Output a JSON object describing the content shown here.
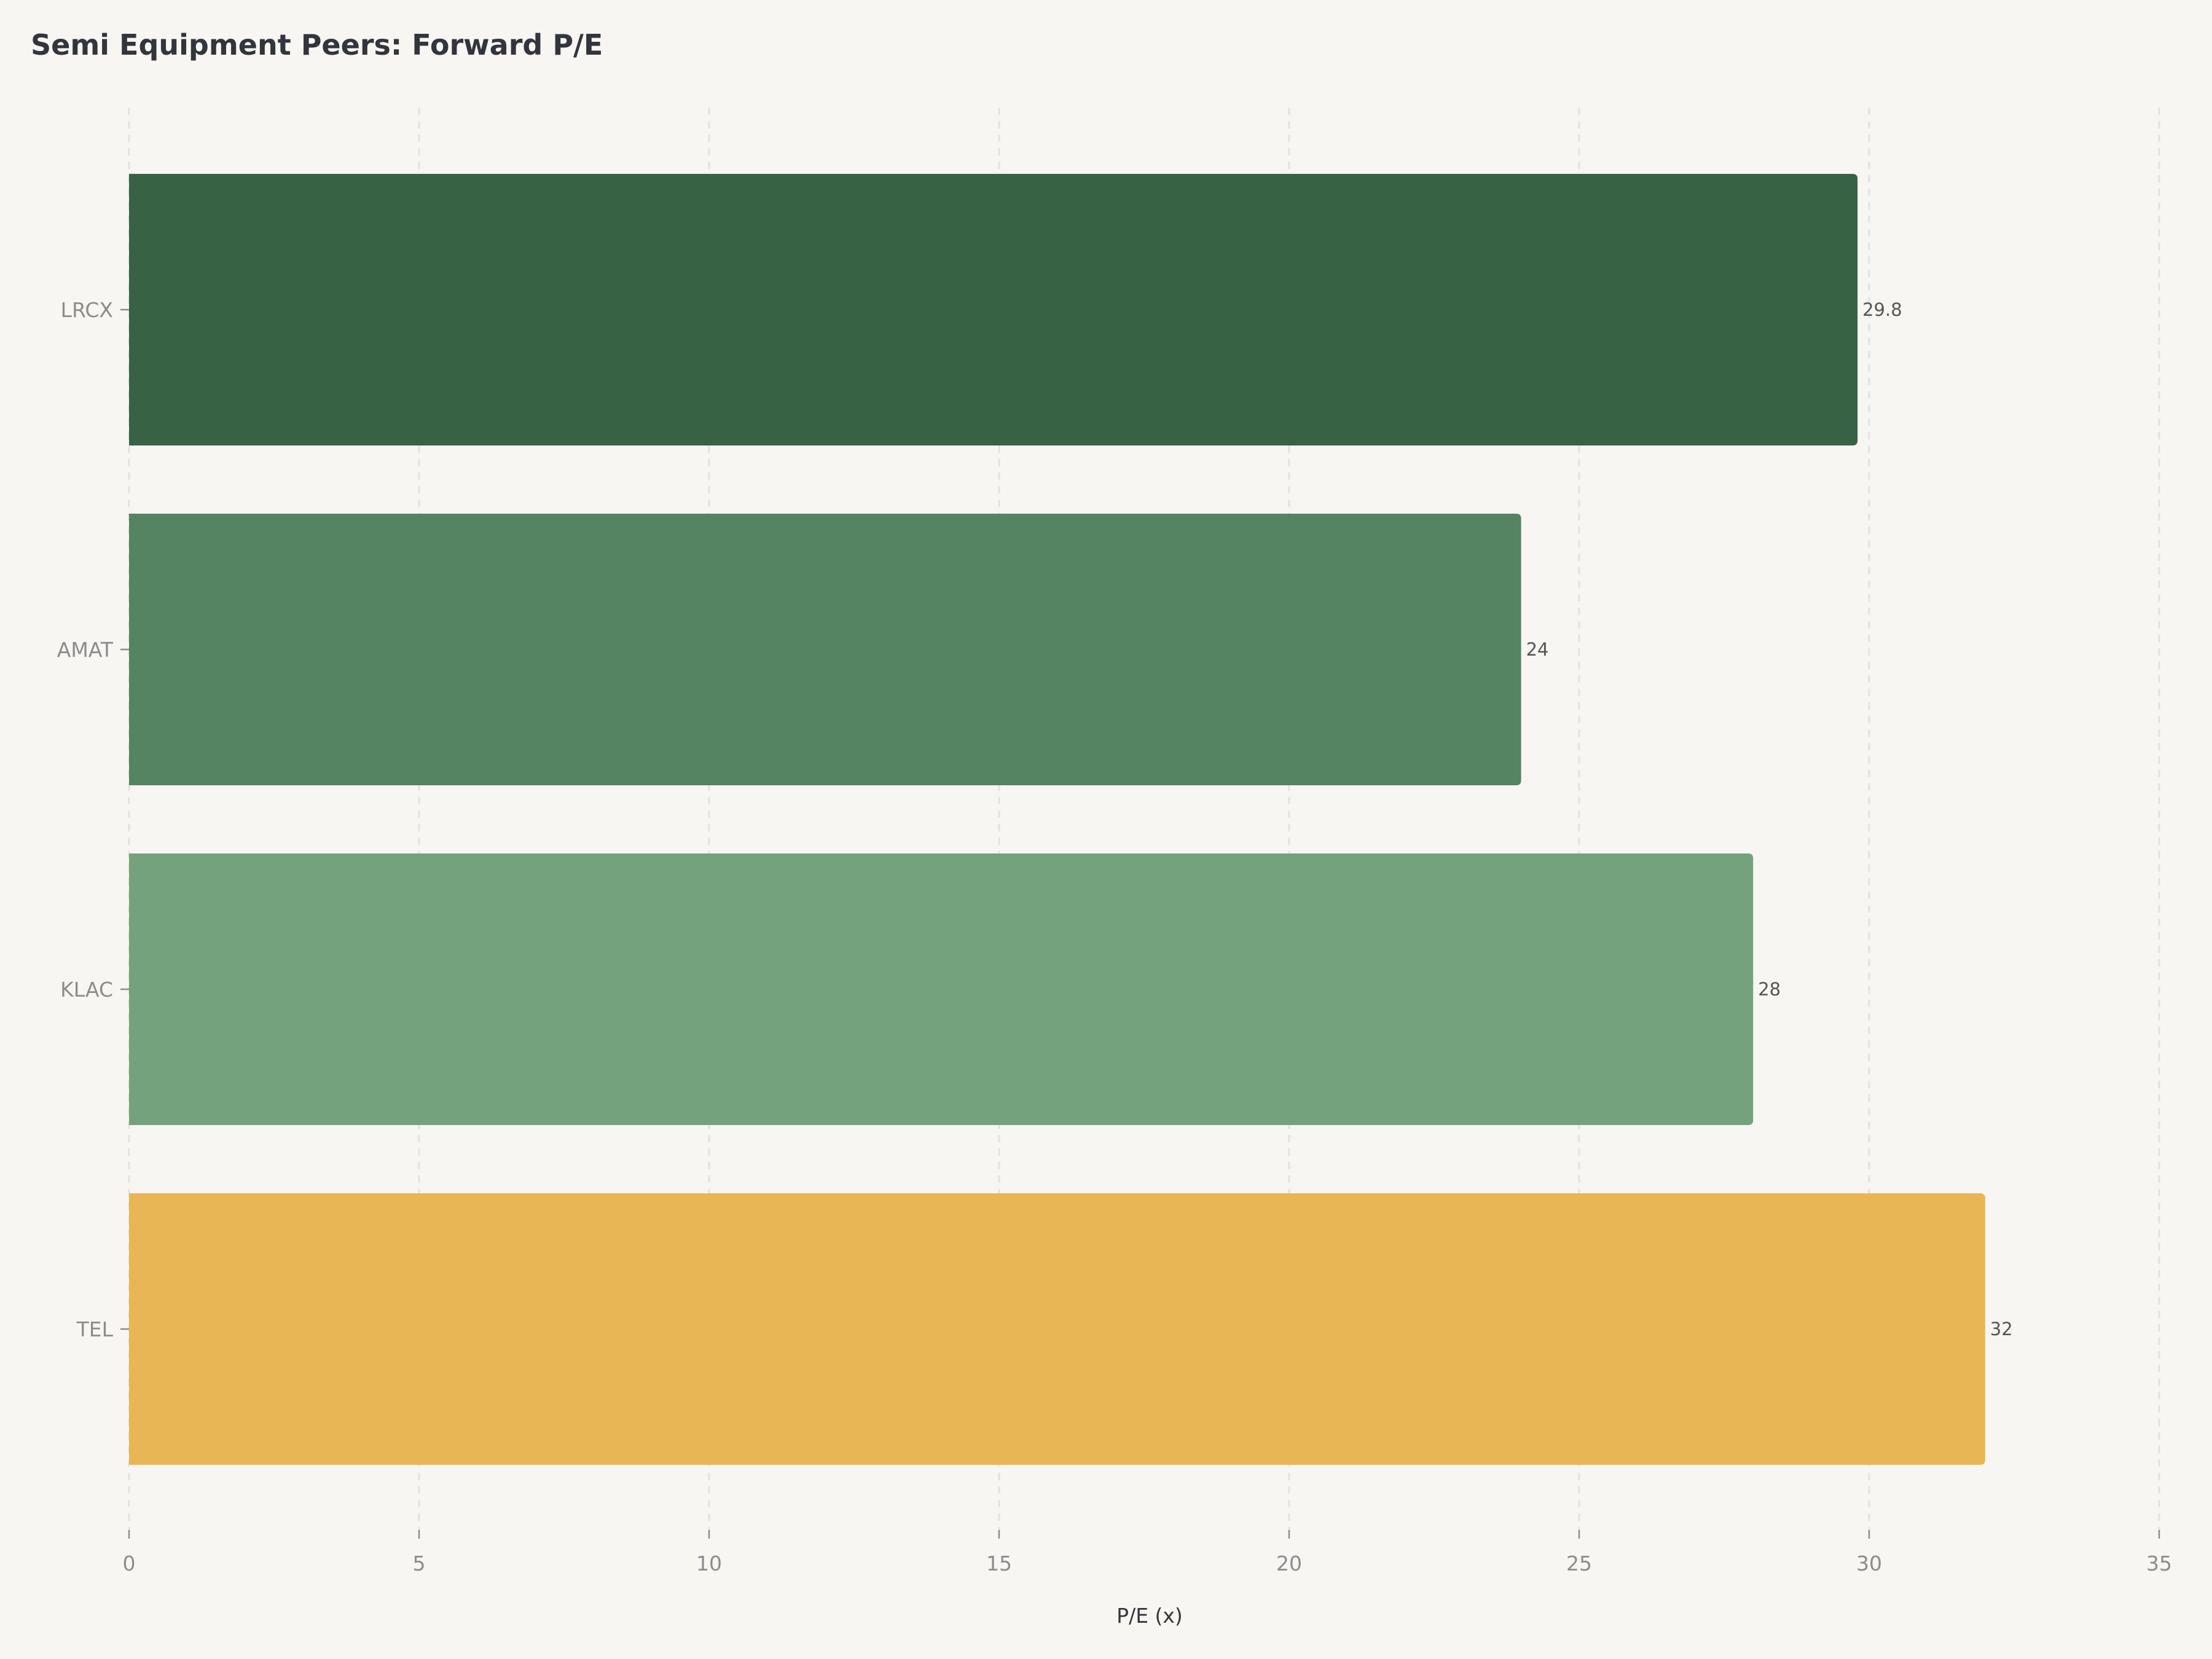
{
  "chart_data": {
    "type": "bar",
    "orientation": "horizontal",
    "title": "Semi Equipment Peers: Forward P/E",
    "xlabel": "P/E (x)",
    "ylabel": "",
    "categories": [
      "LRCX",
      "AMAT",
      "KLAC",
      "TEL"
    ],
    "values": [
      29.8,
      24,
      28,
      32
    ],
    "value_labels": [
      "29.8",
      "24",
      "28",
      "32"
    ],
    "colors": [
      "#376244",
      "#548461",
      "#74a27d",
      "#e8b654"
    ],
    "xlim": [
      0,
      35
    ],
    "xticks": [
      0,
      5,
      10,
      15,
      20,
      25,
      30,
      35
    ],
    "xtick_labels": [
      "0",
      "5",
      "10",
      "15",
      "20",
      "25",
      "30",
      "35"
    ],
    "grid": "vertical dashed",
    "legend": "none"
  }
}
